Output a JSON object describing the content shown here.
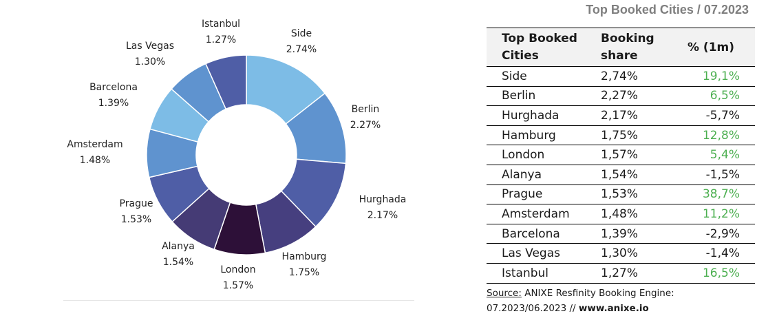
{
  "chart_data": {
    "type": "pie",
    "title": "Top Booked Cities / 07.2023",
    "categories": [
      "Side",
      "Berlin",
      "Hurghada",
      "Hamburg",
      "London",
      "Alanya",
      "Prague",
      "Amsterdam",
      "Barcelona",
      "Las Vegas",
      "Istanbul"
    ],
    "values": [
      2.74,
      2.27,
      2.17,
      1.75,
      1.57,
      1.54,
      1.53,
      1.48,
      1.39,
      1.3,
      1.27
    ],
    "value_labels": [
      "2.74%",
      "2.27%",
      "2.17%",
      "1.75%",
      "1.57%",
      "1.54%",
      "1.53%",
      "1.48%",
      "1.39%",
      "1.30%",
      "1.27%"
    ],
    "colors": [
      "#7dbce6",
      "#5f93cf",
      "#4f5ea6",
      "#463f7f",
      "#2d1038",
      "#453b75",
      "#4f5ea6",
      "#5f93cf",
      "#7dbce6",
      "#5f93cf",
      "#4f5ea6"
    ],
    "donut": true,
    "legend": "none"
  },
  "table": {
    "title": "Top Booked Cities / 07.2023",
    "headers": [
      "Top Booked Cities",
      "Booking share",
      "% (1m)"
    ],
    "rows": [
      {
        "city": "Side",
        "share": "2,74%",
        "change": "19,1%",
        "positive": true
      },
      {
        "city": "Berlin",
        "share": "2,27%",
        "change": "6,5%",
        "positive": true
      },
      {
        "city": "Hurghada",
        "share": "2,17%",
        "change": "-5,7%",
        "positive": false
      },
      {
        "city": "Hamburg",
        "share": "1,75%",
        "change": "12,8%",
        "positive": true
      },
      {
        "city": "London",
        "share": "1,57%",
        "change": "5,4%",
        "positive": true
      },
      {
        "city": "Alanya",
        "share": "1,54%",
        "change": "-1,5%",
        "positive": false
      },
      {
        "city": "Prague",
        "share": "1,53%",
        "change": "38,7%",
        "positive": true
      },
      {
        "city": "Amsterdam",
        "share": "1,48%",
        "change": "11,2%",
        "positive": true
      },
      {
        "city": "Barcelona",
        "share": "1,39%",
        "change": "-2,9%",
        "positive": false
      },
      {
        "city": "Las Vegas",
        "share": "1,30%",
        "change": "-1,4%",
        "positive": false
      },
      {
        "city": "Istanbul",
        "share": "1,27%",
        "change": "16,5%",
        "positive": true
      }
    ],
    "positive_color": "#4caf50"
  },
  "source": {
    "label": "Source:",
    "text": "ANIXE Resfinity Booking Engine:",
    "period": "07.2023/06.2023 //",
    "url": "www.anixe.io"
  }
}
